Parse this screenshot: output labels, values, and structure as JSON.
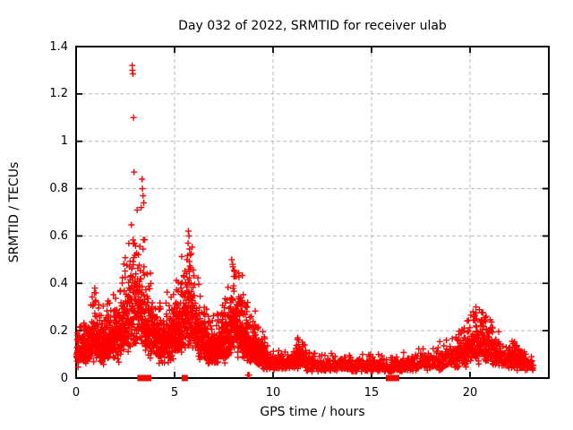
{
  "chart_data": {
    "type": "scatter",
    "title": "Day 032 of 2022, SRMTID for receiver ulab",
    "xlabel": "GPS time / hours",
    "ylabel": "SRMTID / TECUs",
    "xlim": [
      0,
      24
    ],
    "ylim": [
      0,
      1.4
    ],
    "xticks": [
      0,
      5,
      10,
      15,
      20
    ],
    "xtick_labels": [
      "0",
      "5",
      "10",
      "15",
      "20"
    ],
    "yticks": [
      0,
      0.2,
      0.4,
      0.6,
      0.8,
      1.0,
      1.2,
      1.4
    ],
    "ytick_labels": [
      "0",
      "0.2",
      "0.4",
      "0.6",
      "0.8",
      "1",
      "1.2",
      "1.4"
    ],
    "grid": true,
    "legend": "none",
    "marker": "plus-cross",
    "marker_size_px": 7,
    "time_range": [
      0.03,
      23.22
    ],
    "envelope_t_median_max": [
      [
        0.0,
        0.1,
        0.2
      ],
      [
        0.5,
        0.12,
        0.24
      ],
      [
        0.9,
        0.17,
        0.38
      ],
      [
        1.3,
        0.14,
        0.3
      ],
      [
        1.8,
        0.16,
        0.34
      ],
      [
        2.2,
        0.19,
        0.42
      ],
      [
        2.6,
        0.26,
        0.7
      ],
      [
        2.9,
        0.32,
        0.78
      ],
      [
        3.2,
        0.3,
        0.85
      ],
      [
        3.5,
        0.24,
        0.6
      ],
      [
        3.9,
        0.18,
        0.42
      ],
      [
        4.4,
        0.15,
        0.38
      ],
      [
        4.9,
        0.17,
        0.4
      ],
      [
        5.4,
        0.24,
        0.55
      ],
      [
        5.75,
        0.3,
        0.62
      ],
      [
        6.1,
        0.2,
        0.45
      ],
      [
        6.6,
        0.14,
        0.3
      ],
      [
        7.1,
        0.12,
        0.26
      ],
      [
        7.6,
        0.16,
        0.36
      ],
      [
        8.0,
        0.24,
        0.5
      ],
      [
        8.4,
        0.2,
        0.45
      ],
      [
        8.8,
        0.14,
        0.32
      ],
      [
        9.2,
        0.12,
        0.27
      ],
      [
        9.6,
        0.08,
        0.16
      ],
      [
        10.0,
        0.06,
        0.12
      ],
      [
        10.6,
        0.055,
        0.11
      ],
      [
        11.0,
        0.07,
        0.14
      ],
      [
        11.3,
        0.09,
        0.17
      ],
      [
        11.8,
        0.06,
        0.12
      ],
      [
        12.6,
        0.055,
        0.11
      ],
      [
        13.6,
        0.055,
        0.11
      ],
      [
        14.6,
        0.05,
        0.1
      ],
      [
        15.6,
        0.05,
        0.1
      ],
      [
        16.3,
        0.045,
        0.1
      ],
      [
        17.0,
        0.06,
        0.12
      ],
      [
        17.8,
        0.07,
        0.14
      ],
      [
        18.4,
        0.08,
        0.16
      ],
      [
        19.0,
        0.08,
        0.16
      ],
      [
        19.7,
        0.11,
        0.22
      ],
      [
        20.3,
        0.15,
        0.3
      ],
      [
        20.9,
        0.14,
        0.26
      ],
      [
        21.4,
        0.1,
        0.2
      ],
      [
        21.9,
        0.08,
        0.16
      ],
      [
        22.4,
        0.08,
        0.15
      ],
      [
        22.9,
        0.055,
        0.11
      ],
      [
        23.25,
        0.05,
        0.1
      ]
    ],
    "highlight_points": [
      [
        2.85,
        1.32
      ],
      [
        2.86,
        1.3
      ],
      [
        2.88,
        1.285
      ],
      [
        2.92,
        1.1
      ],
      [
        2.94,
        0.87
      ],
      [
        3.35,
        0.84
      ],
      [
        3.37,
        0.8
      ],
      [
        3.4,
        0.77
      ],
      [
        3.43,
        0.74
      ],
      [
        3.3,
        0.72
      ],
      [
        5.7,
        0.62
      ],
      [
        5.73,
        0.6
      ],
      [
        5.68,
        0.57
      ],
      [
        5.76,
        0.545
      ],
      [
        5.8,
        0.52
      ],
      [
        5.63,
        0.5
      ],
      [
        7.9,
        0.5
      ],
      [
        7.95,
        0.48
      ],
      [
        8.02,
        0.455
      ],
      [
        8.06,
        0.43
      ],
      [
        20.3,
        0.3
      ],
      [
        20.31,
        0.275
      ],
      [
        20.33,
        0.25
      ],
      [
        8.72,
        0.012
      ],
      [
        8.78,
        0.012
      ],
      [
        0.95,
        0.38
      ],
      [
        1.0,
        0.36
      ],
      [
        11.25,
        0.17
      ],
      [
        11.3,
        0.16
      ]
    ],
    "zero_value_points": [
      [
        3.27,
        0
      ],
      [
        3.36,
        0
      ],
      [
        3.56,
        0
      ],
      [
        3.66,
        0
      ],
      [
        5.52,
        0
      ],
      [
        15.88,
        0
      ],
      [
        16.15,
        0
      ],
      [
        16.25,
        0
      ]
    ]
  },
  "colors": {
    "marker": "#ff0000",
    "grid": "#b8b8b8",
    "axis": "#000000",
    "background": "#ffffff",
    "text": "#000000"
  }
}
